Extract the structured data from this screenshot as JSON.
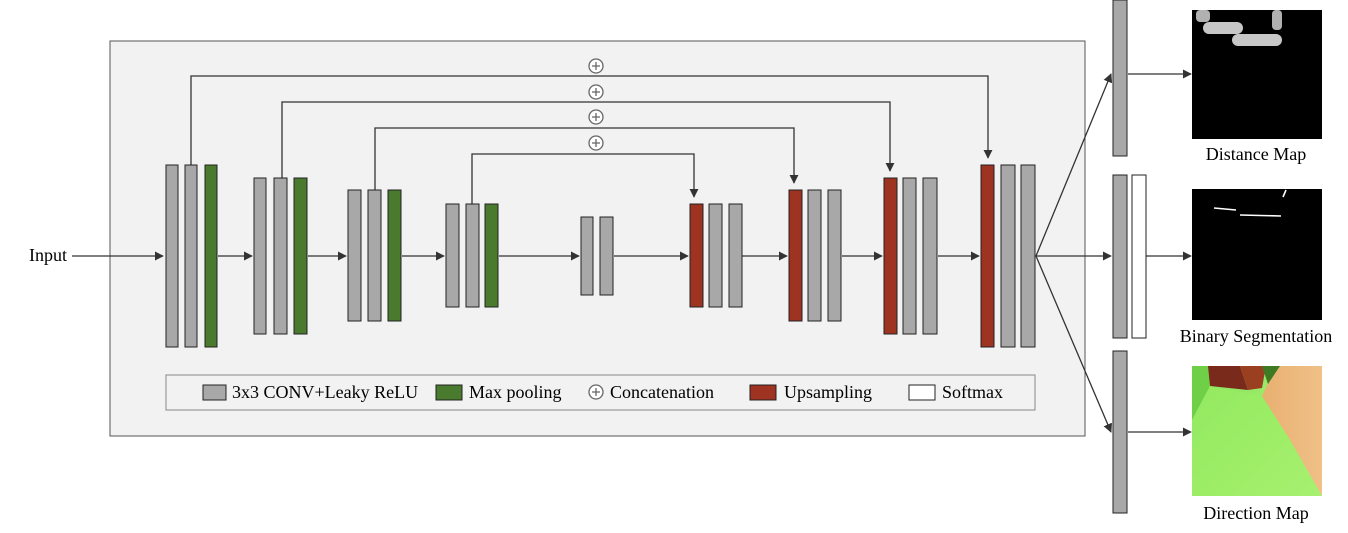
{
  "input_label": "Input",
  "legend": {
    "conv": "3x3 CONV+Leaky ReLU",
    "pool": "Max pooling",
    "concat": "Concatenation",
    "upsample": "Upsampling",
    "softmax": "Softmax"
  },
  "outputs": {
    "distance": "Distance Map",
    "binary": "Binary Segmentation",
    "direction": "Direction Map"
  },
  "colors": {
    "conv": "#a8a8a8",
    "pool": "#4a7a2e",
    "upsample": "#9e3322",
    "softmax": "#ffffff",
    "panel": "#f2f2f2"
  }
}
